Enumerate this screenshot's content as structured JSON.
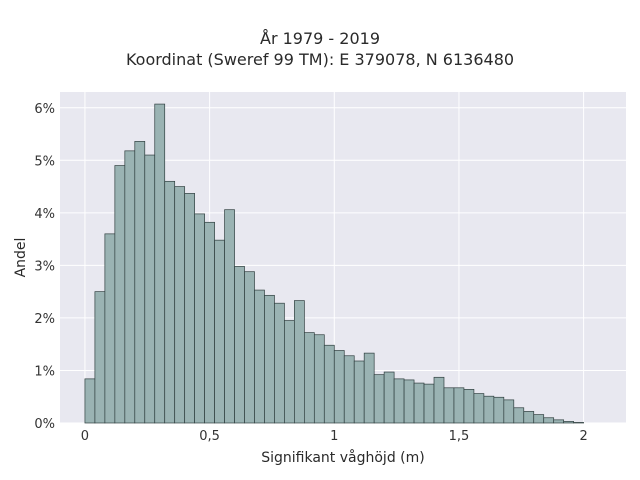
{
  "chart_data": {
    "type": "bar",
    "title": "År 1979 - 2019",
    "subtitle": "Koordinat (Sweref 99 TM): E 379078, N 6136480",
    "xlabel": "Signifikant våghöjd (m)",
    "ylabel": "Andel",
    "xlim": [
      -0.1,
      2.17
    ],
    "ylim": [
      0,
      6.3
    ],
    "bin_width": 0.04,
    "bin_start": 0.0,
    "x_ticks": [
      0,
      0.5,
      1,
      1.5,
      2
    ],
    "x_tick_labels": [
      "0",
      "0,5",
      "1",
      "1,5",
      "2"
    ],
    "y_ticks": [
      0,
      1,
      2,
      3,
      4,
      5,
      6
    ],
    "y_tick_labels": [
      "0%",
      "1%",
      "2%",
      "3%",
      "4%",
      "5%",
      "6%"
    ],
    "grid": true,
    "bar_color": "#9ab3b3",
    "bar_edge_color": "#2f3f3f",
    "plot_background": "#e8e8f0",
    "values": [
      0.84,
      2.5,
      3.6,
      4.9,
      5.18,
      5.36,
      5.1,
      6.07,
      4.6,
      4.5,
      4.37,
      3.98,
      3.82,
      3.48,
      4.06,
      2.98,
      2.88,
      2.53,
      2.43,
      2.28,
      1.95,
      2.33,
      1.72,
      1.68,
      1.48,
      1.38,
      1.28,
      1.18,
      1.33,
      0.92,
      0.97,
      0.84,
      0.82,
      0.76,
      0.74,
      0.87,
      0.67,
      0.67,
      0.64,
      0.56,
      0.51,
      0.49,
      0.44,
      0.29,
      0.22,
      0.16,
      0.1,
      0.06,
      0.03,
      0.01
    ]
  }
}
